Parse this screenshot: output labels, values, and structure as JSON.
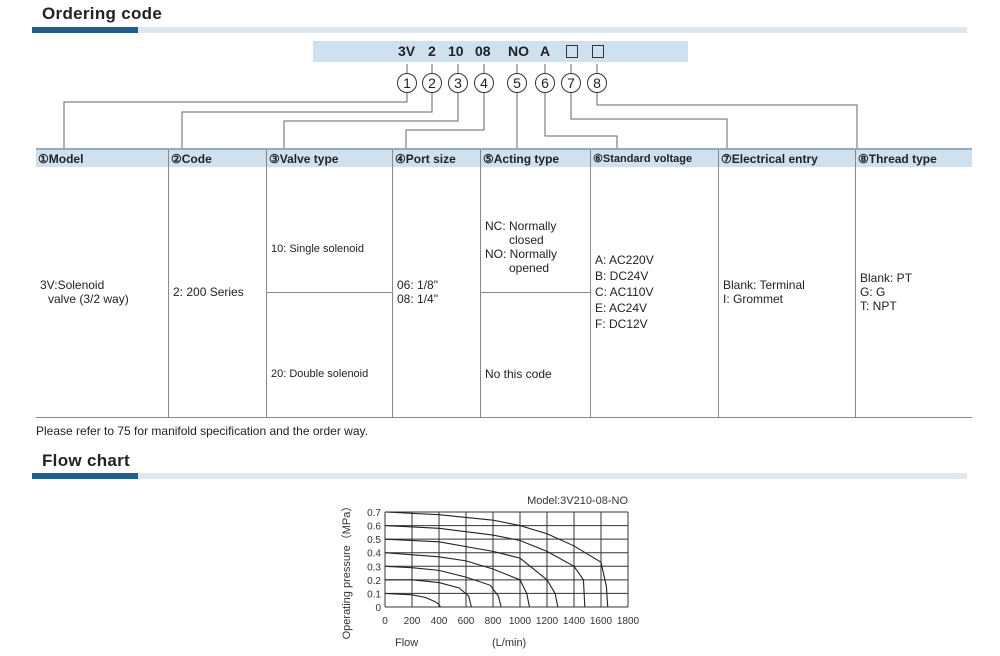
{
  "ordering": {
    "title": "Ordering code",
    "code_parts": [
      "3V",
      "2",
      "10",
      "08",
      "NO",
      "A"
    ],
    "numbers": [
      "1",
      "2",
      "3",
      "4",
      "5",
      "6",
      "7",
      "8"
    ],
    "headers": [
      "①Model",
      "②Code",
      "③Valve type",
      "④Port size",
      "⑤Acting type",
      "⑥Standard voltage",
      "⑦Electrical entry",
      "⑧Thread type"
    ],
    "model": [
      "3V:Solenoid",
      "valve (3/2 way)"
    ],
    "code": "2: 200 Series",
    "valve_type": [
      "10: Single solenoid",
      "20: Double solenoid"
    ],
    "port_size": [
      "06: 1/8\"",
      "08: 1/4\""
    ],
    "acting_type": [
      "NC: Normally",
      "closed",
      "NO: Normally",
      "opened",
      "No this code"
    ],
    "voltage": [
      "A: AC220V",
      "B: DC24V",
      "C: AC110V",
      "E: AC24V",
      "F: DC12V"
    ],
    "electrical": [
      "Blank: Terminal",
      "I: Grommet"
    ],
    "thread": [
      "Blank: PT",
      "G: G",
      "T: NPT"
    ],
    "note": "Please refer to 75 for manifold specification and the order way."
  },
  "flow": {
    "title": "Flow chart"
  },
  "chart_data": {
    "type": "line",
    "title": "Model:3V210-08-NO",
    "xlabel": "Flow",
    "xunit": "(L/min)",
    "ylabel": "Operating pressure（MPa）",
    "xlim": [
      0,
      1800
    ],
    "ylim": [
      0,
      0.7
    ],
    "grid": true,
    "xticks": [
      0,
      200,
      400,
      600,
      800,
      1000,
      1200,
      1400,
      1600,
      1800
    ],
    "yticks": [
      0,
      0.1,
      0.2,
      0.3,
      0.4,
      0.5,
      0.6,
      0.7
    ],
    "series": [
      {
        "values": [
          [
            0,
            0.1
          ],
          [
            200,
            0.09
          ],
          [
            300,
            0.07
          ],
          [
            370,
            0.04
          ],
          [
            400,
            0.02
          ],
          [
            410,
            0
          ]
        ]
      },
      {
        "values": [
          [
            0,
            0.2
          ],
          [
            200,
            0.2
          ],
          [
            400,
            0.18
          ],
          [
            550,
            0.14
          ],
          [
            620,
            0.08
          ],
          [
            640,
            0
          ]
        ]
      },
      {
        "values": [
          [
            0,
            0.3
          ],
          [
            200,
            0.29
          ],
          [
            400,
            0.27
          ],
          [
            600,
            0.22
          ],
          [
            780,
            0.16
          ],
          [
            840,
            0.08
          ],
          [
            860,
            0
          ]
        ]
      },
      {
        "values": [
          [
            0,
            0.4
          ],
          [
            400,
            0.37
          ],
          [
            600,
            0.34
          ],
          [
            800,
            0.28
          ],
          [
            1000,
            0.2
          ],
          [
            1050,
            0.1
          ],
          [
            1070,
            0
          ]
        ]
      },
      {
        "values": [
          [
            0,
            0.5
          ],
          [
            400,
            0.48
          ],
          [
            800,
            0.41
          ],
          [
            1000,
            0.36
          ],
          [
            1200,
            0.2
          ],
          [
            1260,
            0.1
          ],
          [
            1280,
            0
          ]
        ]
      },
      {
        "values": [
          [
            0,
            0.6
          ],
          [
            400,
            0.58
          ],
          [
            800,
            0.53
          ],
          [
            1000,
            0.49
          ],
          [
            1200,
            0.41
          ],
          [
            1400,
            0.3
          ],
          [
            1470,
            0.2
          ],
          [
            1480,
            0
          ]
        ]
      },
      {
        "values": [
          [
            0,
            0.7
          ],
          [
            400,
            0.68
          ],
          [
            800,
            0.64
          ],
          [
            1000,
            0.6
          ],
          [
            1200,
            0.54
          ],
          [
            1400,
            0.45
          ],
          [
            1600,
            0.33
          ],
          [
            1640,
            0.15
          ],
          [
            1650,
            0
          ]
        ]
      }
    ]
  }
}
